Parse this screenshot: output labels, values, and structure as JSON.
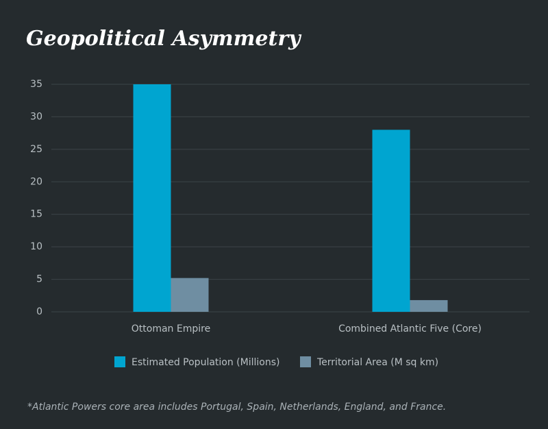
{
  "chart_data": {
    "type": "bar",
    "title": "Geopolitical Asymmetry",
    "categories": [
      "Ottoman Empire",
      "Combined Atlantic Five (Core)"
    ],
    "series": [
      {
        "name": "Estimated Population (Millions)",
        "color": "#00a5d0",
        "values": [
          35,
          28
        ]
      },
      {
        "name": "Territorial Area (M sq km)",
        "color": "#6f8ea2",
        "values": [
          5.2,
          1.8
        ]
      }
    ],
    "ylim": [
      0,
      35
    ],
    "yticks": [
      0,
      5,
      10,
      15,
      20,
      25,
      30,
      35
    ],
    "grid": true,
    "note": "*Atlantic Powers core area includes Portugal, Spain, Netherlands, England, and France."
  }
}
